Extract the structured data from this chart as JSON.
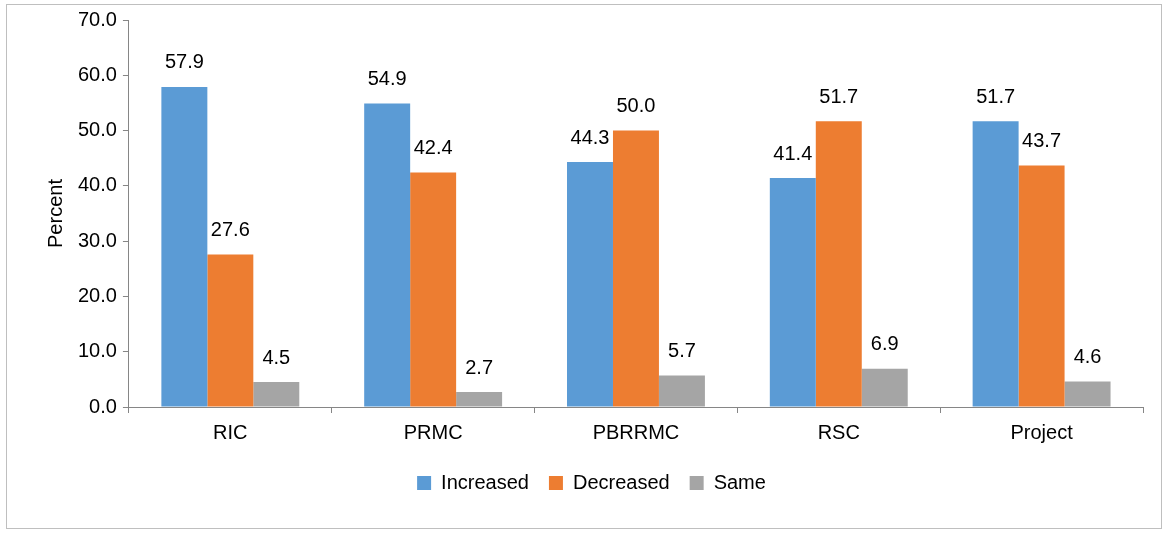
{
  "chart_data": {
    "type": "bar",
    "ylabel": "Percent",
    "categories": [
      "RIC",
      "PRMC",
      "PBRRMC",
      "RSC",
      "Project"
    ],
    "series": [
      {
        "name": "Increased",
        "color": "#5b9bd5",
        "values": [
          57.9,
          54.9,
          44.3,
          41.4,
          51.7
        ],
        "value_labels": [
          "57.9",
          "54.9",
          "44.3",
          "41.4",
          "51.7"
        ]
      },
      {
        "name": "Decreased",
        "color": "#ed7d31",
        "values": [
          27.6,
          42.4,
          50.0,
          51.7,
          43.7
        ],
        "value_labels": [
          "27.6",
          "42.4",
          "50.0",
          "51.7",
          "43.7"
        ]
      },
      {
        "name": "Same",
        "color": "#a5a5a5",
        "values": [
          4.5,
          2.7,
          5.7,
          6.9,
          4.6
        ],
        "value_labels": [
          "4.5",
          "2.7",
          "5.7",
          "6.9",
          "4.6"
        ]
      }
    ],
    "ylim": [
      0,
      70
    ],
    "yticks": [
      {
        "value": 0,
        "label": "0.0"
      },
      {
        "value": 10,
        "label": "10.0"
      },
      {
        "value": 20,
        "label": "20.0"
      },
      {
        "value": 30,
        "label": "30.0"
      },
      {
        "value": 40,
        "label": "40.0"
      },
      {
        "value": 50,
        "label": "50.0"
      },
      {
        "value": 60,
        "label": "60.0"
      },
      {
        "value": 70,
        "label": "70.0"
      }
    ],
    "grid": false,
    "legend": "bottom"
  }
}
